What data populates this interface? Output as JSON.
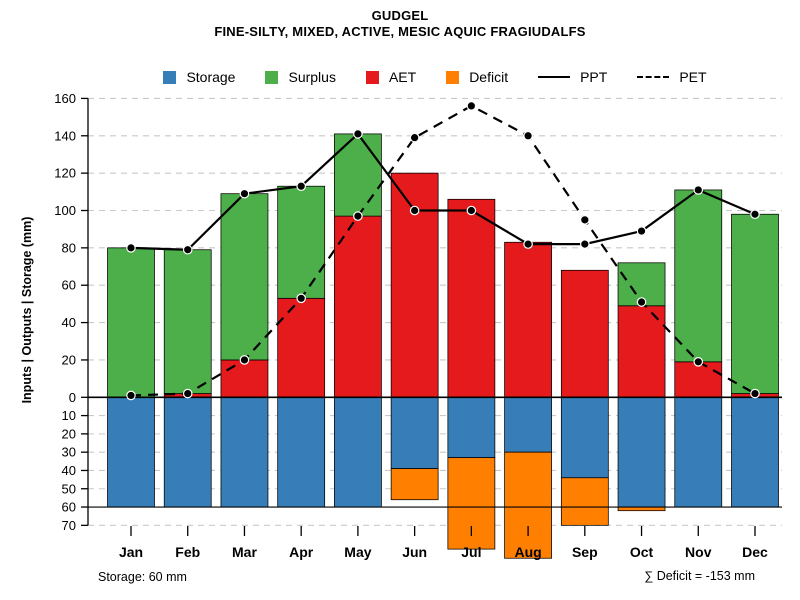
{
  "header": {
    "title": "GUDGEL",
    "subtitle": "FINE-SILTY, MIXED, ACTIVE, MESIC AQUIC FRAGIUDALFS"
  },
  "footer": {
    "storage_note": "Storage: 60 mm",
    "deficit_note": "∑ Deficit = -153 mm"
  },
  "chart_data": {
    "type": "bar",
    "subtype": "monthly soil water balance: stacked bars (upper AET+Surplus, lower inverted Storage+Deficit) with PPT/PET overlay lines",
    "title": "GUDGEL",
    "subtitle": "FINE-SILTY, MIXED, ACTIVE, MESIC AQUIC FRAGIUDALFS",
    "ylabel": "Inputs | Outputs | Storage  (mm)",
    "categories": [
      "Jan",
      "Feb",
      "Mar",
      "Apr",
      "May",
      "Jun",
      "Jul",
      "Aug",
      "Sep",
      "Oct",
      "Nov",
      "Dec"
    ],
    "upper_axis": {
      "ticks": [
        0,
        20,
        40,
        60,
        80,
        100,
        120,
        140,
        160
      ],
      "range": [
        0,
        160
      ],
      "direction": "up"
    },
    "lower_axis": {
      "ticks": [
        10,
        20,
        30,
        40,
        50,
        60,
        70
      ],
      "range": [
        0,
        70
      ],
      "direction": "down (inverted)"
    },
    "grid": "dashed light-gray horizontal gridlines; solid black line at 0 and at 60 on lower axis",
    "legend_position": "top, horizontal, centered",
    "legend": [
      {
        "label": "Storage",
        "swatch": "square",
        "color": "#377EB8"
      },
      {
        "label": "Surplus",
        "swatch": "square",
        "color": "#4DAF4A"
      },
      {
        "label": "AET",
        "swatch": "square",
        "color": "#E41A1C"
      },
      {
        "label": "Deficit",
        "swatch": "square",
        "color": "#FF7F00"
      },
      {
        "label": "PPT",
        "swatch": "solid-line",
        "color": "#000000"
      },
      {
        "label": "PET",
        "swatch": "dashed-line",
        "color": "#000000"
      }
    ],
    "series": [
      {
        "name": "AET",
        "type": "bar",
        "section": "upper",
        "color": "#E41A1C",
        "values": [
          0,
          2,
          20,
          53,
          97,
          120,
          106,
          83,
          68,
          49,
          19,
          2
        ]
      },
      {
        "name": "Surplus",
        "type": "bar",
        "section": "upper",
        "stack_on": "AET",
        "color": "#4DAF4A",
        "values": [
          80,
          77,
          89,
          60,
          44,
          0,
          0,
          0,
          0,
          23,
          92,
          96
        ]
      },
      {
        "name": "Storage",
        "type": "bar",
        "section": "lower",
        "color": "#377EB8",
        "values": [
          60,
          60,
          60,
          60,
          60,
          39,
          33,
          30,
          44,
          60,
          60,
          60
        ]
      },
      {
        "name": "Deficit",
        "type": "bar",
        "section": "lower",
        "stack_on": "Storage",
        "color": "#FF7F00",
        "values": [
          0,
          0,
          0,
          0,
          0,
          17,
          50,
          58,
          26,
          2,
          0,
          0
        ]
      },
      {
        "name": "PPT",
        "type": "line",
        "style": "solid",
        "marker": "filled-circle",
        "color": "#000000",
        "values": [
          80,
          79,
          109,
          113,
          141,
          100,
          100,
          82,
          82,
          89,
          111,
          98
        ]
      },
      {
        "name": "PET",
        "type": "line",
        "style": "dashed",
        "marker": "filled-circle",
        "color": "#000000",
        "values": [
          1,
          2,
          20,
          53,
          97,
          139,
          156,
          140,
          95,
          51,
          19,
          2
        ]
      }
    ],
    "annotations": {
      "storage_capacity_mm": 60,
      "total_deficit_mm": -153
    }
  }
}
